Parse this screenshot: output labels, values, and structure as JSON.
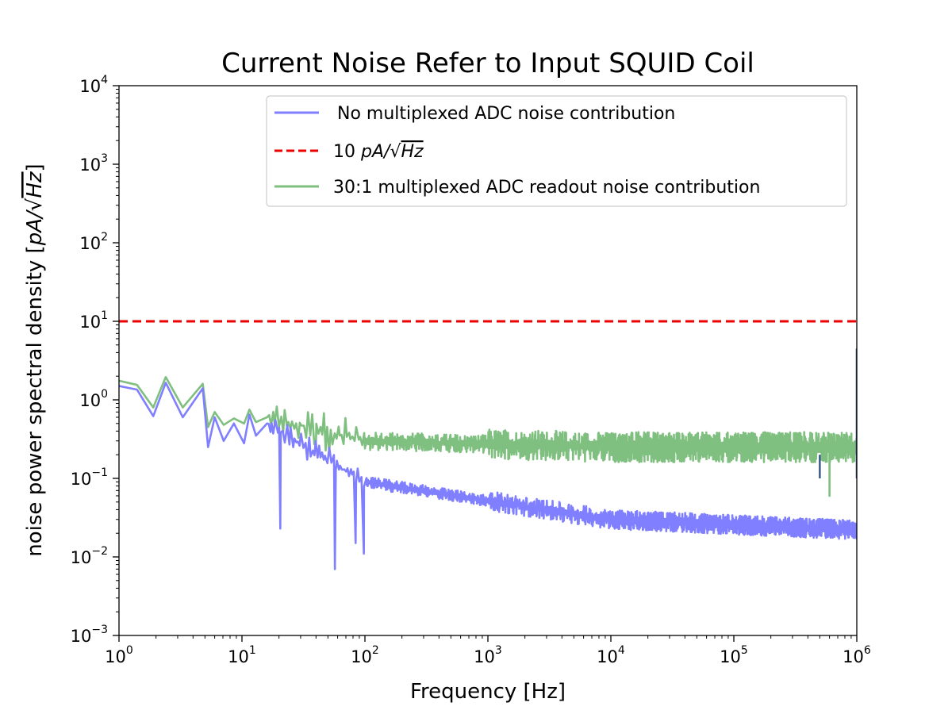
{
  "chart_data": {
    "type": "line",
    "title": "Current Noise Refer to Input SQUID Coil",
    "xlabel": "Frequency [Hz]",
    "ylabel_text": "noise power spectral density [",
    "ylabel_unit_pa": "pA/",
    "ylabel_unit_hz": "Hz",
    "ylabel_close": "]",
    "x_scale": "log",
    "y_scale": "log",
    "xlim": [
      1,
      1000000
    ],
    "ylim": [
      0.001,
      10000
    ],
    "x_ticks": [
      {
        "base": "10",
        "exp": "0",
        "value": 1
      },
      {
        "base": "10",
        "exp": "1",
        "value": 10
      },
      {
        "base": "10",
        "exp": "2",
        "value": 100
      },
      {
        "base": "10",
        "exp": "3",
        "value": 1000
      },
      {
        "base": "10",
        "exp": "4",
        "value": 10000
      },
      {
        "base": "10",
        "exp": "5",
        "value": 100000
      },
      {
        "base": "10",
        "exp": "6",
        "value": 1000000
      }
    ],
    "y_ticks": [
      {
        "base": "10",
        "exp": "−3",
        "value": 0.001
      },
      {
        "base": "10",
        "exp": "−2",
        "value": 0.01
      },
      {
        "base": "10",
        "exp": "−1",
        "value": 0.1
      },
      {
        "base": "10",
        "exp": "0",
        "value": 1
      },
      {
        "base": "10",
        "exp": "1",
        "value": 10
      },
      {
        "base": "10",
        "exp": "2",
        "value": 100
      },
      {
        "base": "10",
        "exp": "3",
        "value": 1000
      },
      {
        "base": "10",
        "exp": "4",
        "value": 10000
      }
    ],
    "legend_position": "top-right",
    "series": [
      {
        "name": " No multiplexed ADC noise contribution",
        "color": "#7f7fff",
        "style": "solid",
        "low_freq_points": [
          [
            1,
            1.5
          ],
          [
            1.4,
            1.35
          ],
          [
            1.9,
            0.62
          ],
          [
            2.4,
            1.65
          ],
          [
            3.3,
            0.6
          ],
          [
            4.8,
            1.4
          ],
          [
            5.3,
            0.25
          ],
          [
            6,
            0.6
          ],
          [
            7.1,
            0.3
          ],
          [
            8.6,
            0.5
          ],
          [
            10.4,
            0.28
          ],
          [
            11.5,
            0.65
          ],
          [
            13,
            0.35
          ],
          [
            16,
            0.5
          ]
        ],
        "level_at_100hz": 0.09,
        "level_at_1e4hz": 0.03,
        "level_at_1e6hz": 0.022,
        "spread_decades": 0.22,
        "dip_points": [
          [
            20.5,
            0.023
          ],
          [
            57,
            0.007
          ],
          [
            84,
            0.015
          ],
          [
            98,
            0.011
          ]
        ],
        "spikes": [
          [
            500000,
            0.2
          ],
          [
            1000000,
            4.5
          ]
        ]
      },
      {
        "name": "10 pA/√Hz",
        "legend_number": "10",
        "legend_unit_pa": "pA/",
        "legend_unit_hz": "Hz",
        "color": "#ee0000",
        "style": "dashed",
        "value": 10
      },
      {
        "name": "30:1 multiplexed ADC readout noise contribution",
        "color": "#7fbf7f",
        "style": "solid",
        "low_freq_points": [
          [
            1,
            1.75
          ],
          [
            1.4,
            1.55
          ],
          [
            1.9,
            0.8
          ],
          [
            2.4,
            1.95
          ],
          [
            3.3,
            0.8
          ],
          [
            4.8,
            1.6
          ],
          [
            5.3,
            0.45
          ],
          [
            6,
            0.7
          ],
          [
            7.1,
            0.48
          ],
          [
            8.6,
            0.58
          ],
          [
            10.4,
            0.5
          ],
          [
            11.5,
            0.75
          ],
          [
            13,
            0.52
          ],
          [
            16,
            0.6
          ]
        ],
        "level_at_100hz": 0.3,
        "level_at_1e4hz": 0.25,
        "level_at_1e6hz": 0.25,
        "spread_decades": 0.34,
        "dip_points": [
          [
            40,
            0.3
          ],
          [
            100,
            0.24
          ],
          [
            600000,
            0.06
          ]
        ],
        "spikes": []
      }
    ]
  }
}
